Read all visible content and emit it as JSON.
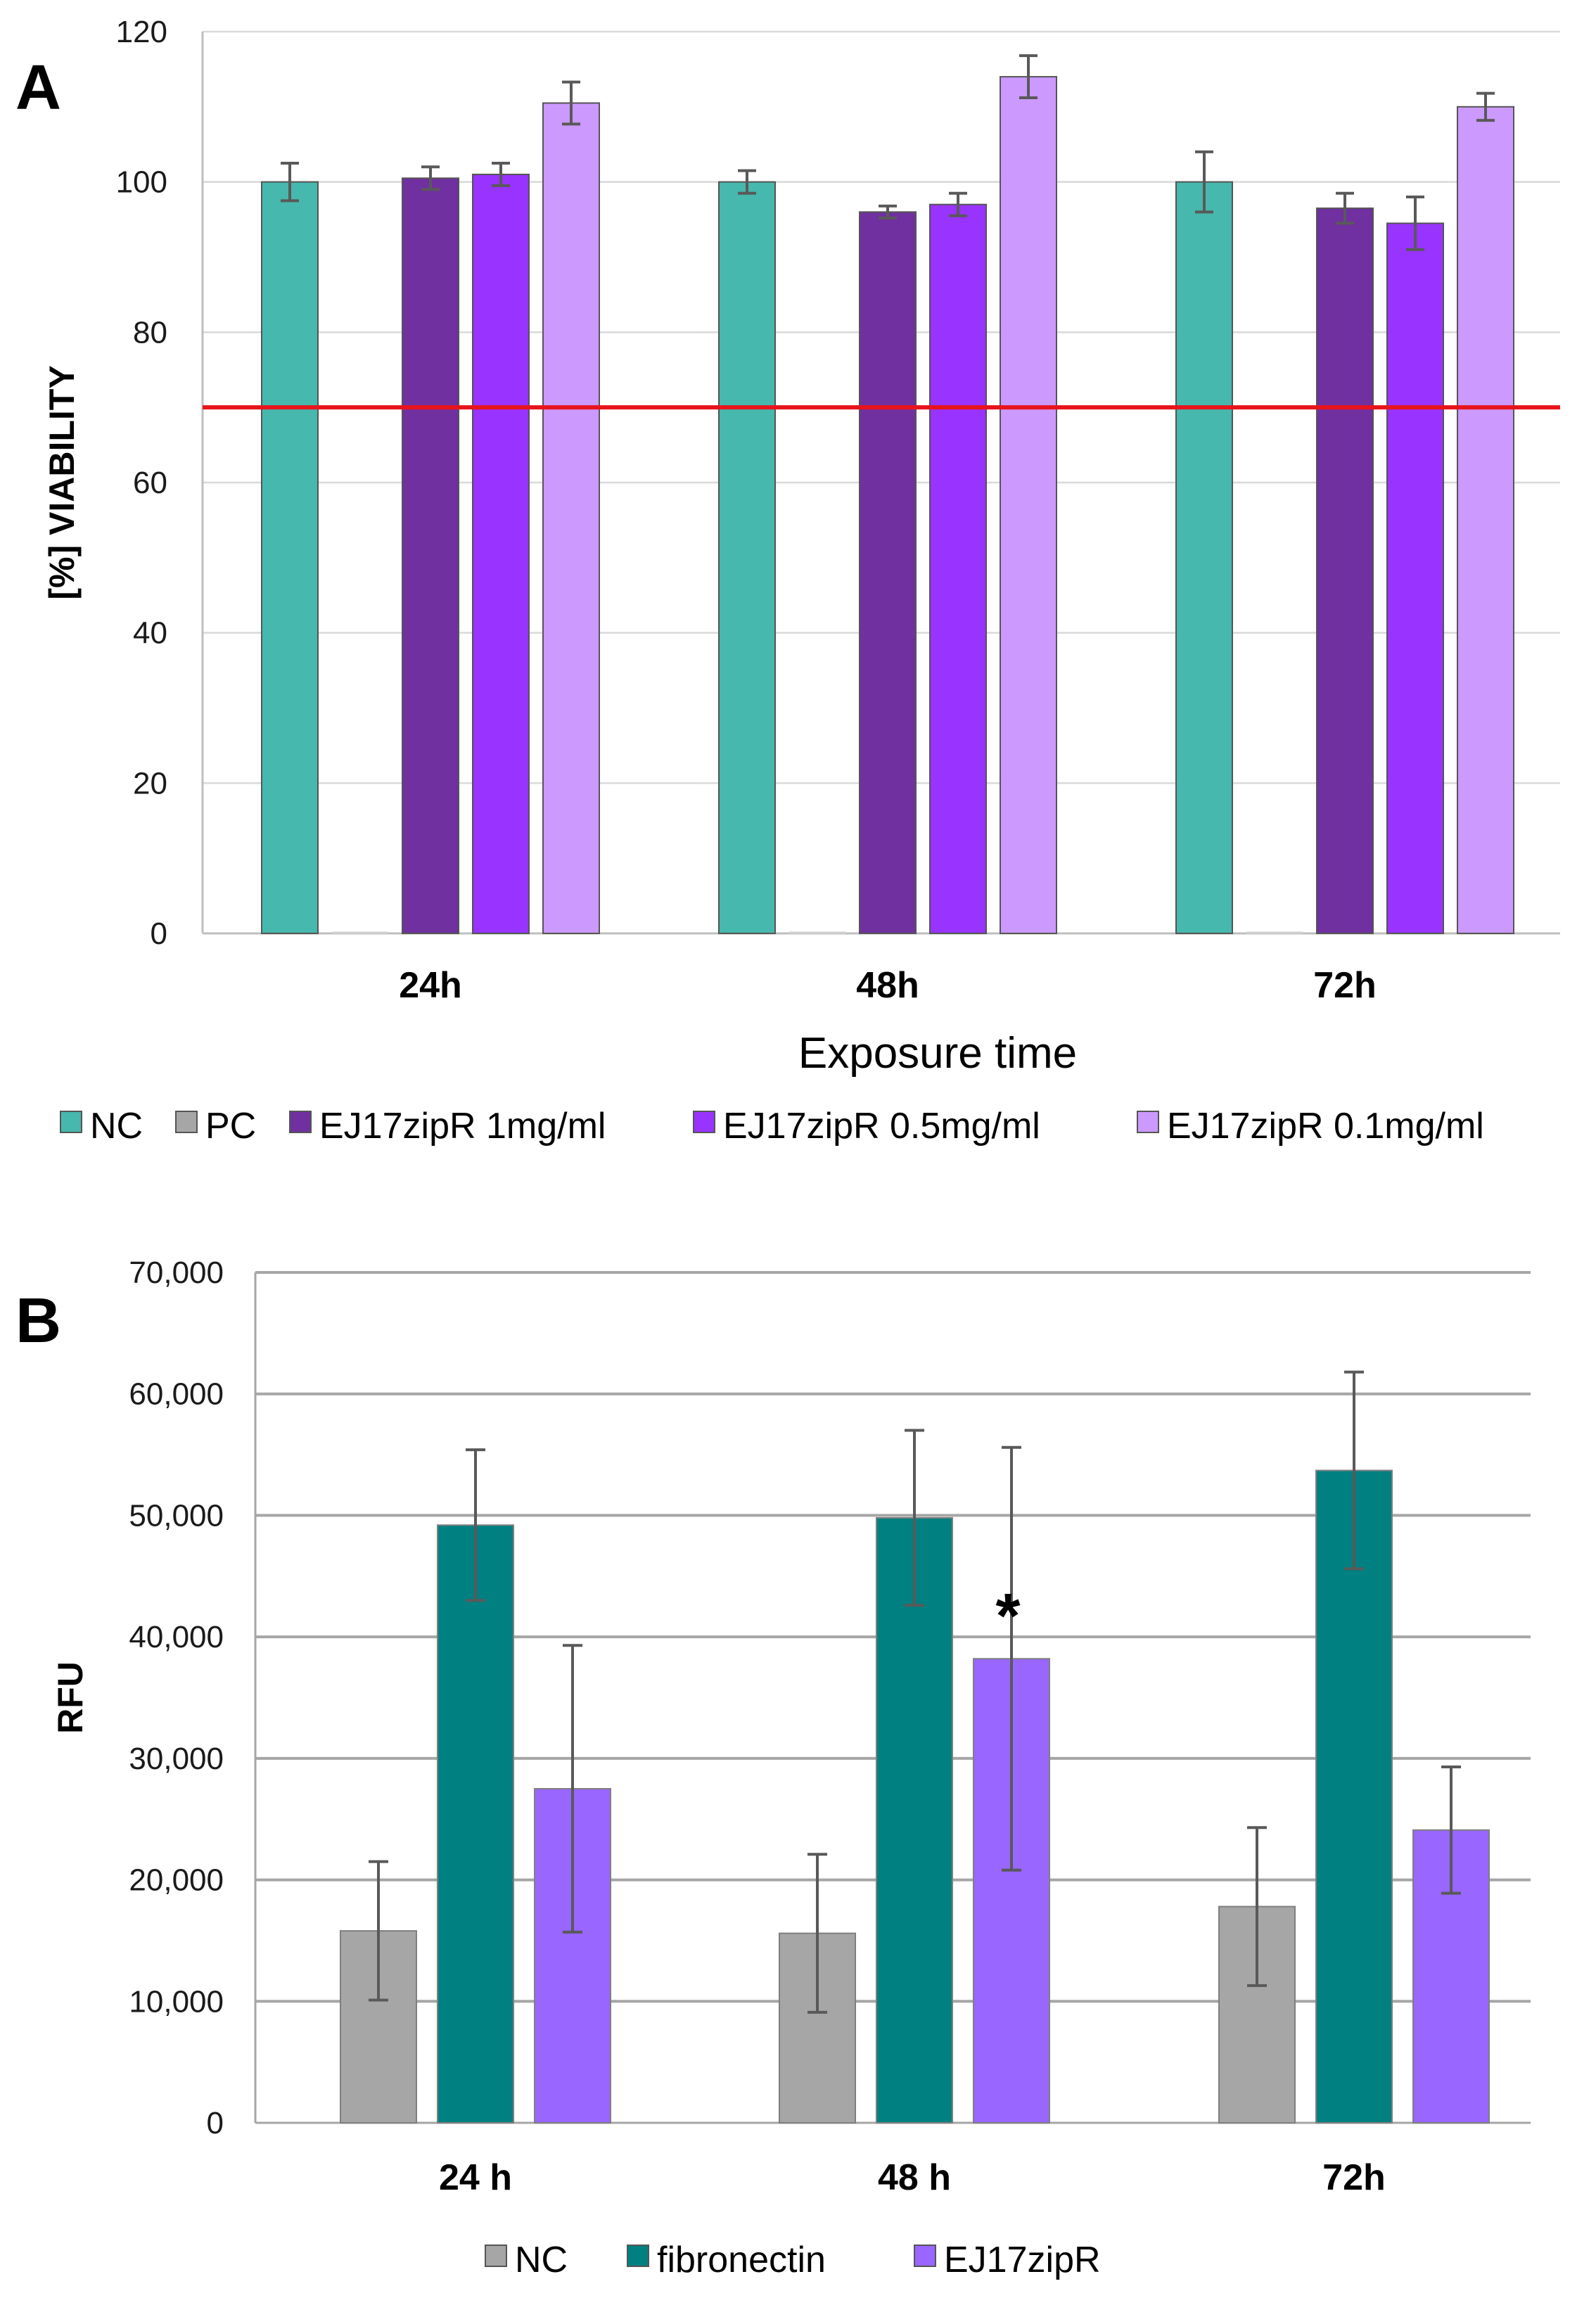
{
  "chart_data": [
    {
      "panel": "A",
      "type": "bar",
      "categories": [
        "24h",
        "48h",
        "72h"
      ],
      "xlabel": "Exposure time",
      "ylabel": "[%] VIABILITY",
      "ylim": [
        0,
        120
      ],
      "yticks": [
        "0",
        "20",
        "40",
        "60",
        "80",
        "100",
        "120"
      ],
      "grid": true,
      "legend_position": "bottom",
      "threshold_line": {
        "value": 70,
        "color": "#e8141c"
      },
      "series": [
        {
          "name": "NC",
          "color": "#46b8ad",
          "values": [
            100,
            100,
            100
          ],
          "errors": [
            2.5,
            1.5,
            4
          ]
        },
        {
          "name": "PC",
          "color": "#a6a6a6",
          "values": [
            0,
            0,
            0
          ],
          "errors": [
            0,
            0,
            0
          ]
        },
        {
          "name": "EJ17zipR 1mg/ml",
          "color": "#7030a0",
          "values": [
            100.5,
            96,
            96.5
          ],
          "errors": [
            1.5,
            0.8,
            2
          ]
        },
        {
          "name": "EJ17zipR 0.5mg/ml",
          "color": "#9933ff",
          "values": [
            101,
            97,
            94.5
          ],
          "errors": [
            1.5,
            1.5,
            3.5
          ]
        },
        {
          "name": "EJ17zipR 0.1mg/ml",
          "color": "#cc99ff",
          "values": [
            110.5,
            114,
            110
          ],
          "errors": [
            2.8,
            2.8,
            1.8
          ]
        }
      ]
    },
    {
      "panel": "B",
      "type": "bar",
      "categories": [
        "24 h",
        "48 h",
        "72h"
      ],
      "xlabel": "",
      "ylabel": "RFU",
      "ylim": [
        0,
        70000
      ],
      "yticks": [
        "0",
        "10,000",
        "20,000",
        "30,000",
        "40,000",
        "50,000",
        "60,000",
        "70,000"
      ],
      "grid": true,
      "legend_position": "bottom",
      "annotation": {
        "text": "*",
        "series": "EJ17zipR",
        "category": "48 h"
      },
      "series": [
        {
          "name": "NC",
          "color": "#a6a6a6",
          "values": [
            15800,
            15600,
            17800
          ],
          "errors": [
            5700,
            6500,
            6500
          ]
        },
        {
          "name": "fibronectin",
          "color": "#008080",
          "values": [
            49200,
            49800,
            53700
          ],
          "errors": [
            6200,
            7200,
            8100
          ]
        },
        {
          "name": "EJ17zipR",
          "color": "#9966ff",
          "values": [
            27500,
            38200,
            24100
          ],
          "errors": [
            11800,
            17400,
            5200
          ]
        }
      ]
    }
  ]
}
